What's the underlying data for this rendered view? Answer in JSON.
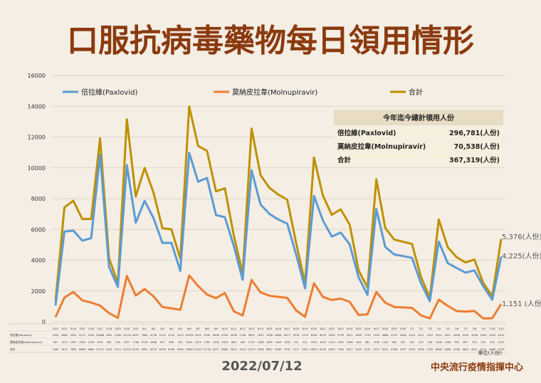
{
  "title": "口服抗病毒藥物每日領用情形",
  "date": "2022/07/12",
  "source": "中央流行疫情指揮中心",
  "unit_note": "單位(人份)",
  "colors": {
    "title": "#8b3a0f",
    "paxlovid": "#5b9bd5",
    "molnupiravir": "#ed7d31",
    "total": "#bf9000",
    "background": "#f4eee4",
    "box_header": "#e8dcc4",
    "box_body": "#f7efdd"
  },
  "summary": {
    "header": "今年迄今總計領用人份",
    "rows": [
      {
        "label": "倍拉維(Paxlovid)",
        "value": "296,781(人份)"
      },
      {
        "label": "莫納皮拉韋(Molnupiravir)",
        "value": "70,538(人份)"
      },
      {
        "label": "合計",
        "value": "367,319(人份)"
      }
    ]
  },
  "end_labels": {
    "total": "5,376(人份)",
    "paxlovid": "4,225(人份)",
    "molnupiravir": "1,151 (人份)"
  },
  "table_row_labels": [
    "倍拉維(Paxlovid)",
    "莫納皮拉韋(Molnupiravir)",
    "合計"
  ],
  "chart_data": {
    "type": "line",
    "ylim": [
      0,
      16000
    ],
    "yticks": [
      0,
      2000,
      4000,
      6000,
      8000,
      10000,
      12000,
      14000,
      16000
    ],
    "legend_position": "top",
    "grid": true,
    "categories": [
      "5/22",
      "5/23",
      "5/24",
      "5/25",
      "5/26",
      "5/27",
      "5/28",
      "5/29",
      "5/30",
      "5/31",
      "6/1",
      "6/2",
      "6/3",
      "6/4",
      "6/5",
      "6/6",
      "6/7",
      "6/8",
      "6/9",
      "6/10",
      "6/11",
      "6/12",
      "6/13",
      "6/14",
      "6/15",
      "6/16",
      "6/17",
      "6/18",
      "6/19",
      "6/20",
      "6/21",
      "6/22",
      "6/23",
      "6/24",
      "6/25",
      "6/26",
      "6/27",
      "6/28",
      "6/29",
      "6/30",
      "7/1",
      "7/2",
      "7/3",
      "7/4",
      "7/5",
      "7/6",
      "7/7",
      "7/8",
      "7/9",
      "7/10",
      "7/11"
    ],
    "series": [
      {
        "name": "倍拉維(Paxlovid)",
        "values": [
          1053,
          5860,
          5922,
          5272,
          5435,
          10866,
          3581,
          2260,
          10176,
          6437,
          7862,
          6728,
          5119,
          5130,
          3313,
          10978,
          9102,
          9335,
          6936,
          6794,
          4936,
          2728,
          9837,
          7620,
          7006,
          6644,
          6377,
          4376,
          2170,
          8169,
          6579,
          5540,
          5799,
          5021,
          2899,
          1750,
          7324,
          4860,
          4375,
          4266,
          4152,
          2511,
          1337,
          5210,
          3812,
          3498,
          3194,
          3338,
          2299,
          1433,
          4225
        ]
      },
      {
        "name": "莫納皮拉韋(Molnupiravir)",
        "values": [
          307,
          1571,
          1937,
          1394,
          1249,
          1051,
          562,
          252,
          2977,
          1708,
          2129,
          1646,
          957,
          876,
          781,
          3004,
          2325,
          1767,
          1535,
          1870,
          683,
          405,
          2720,
          1908,
          1691,
          1619,
          1554,
          741,
          321,
          2502,
          1613,
          1413,
          1501,
          1296,
          444,
          481,
          1933,
          1241,
          961,
          931,
          901,
          415,
          218,
          1436,
          1036,
          700,
          657,
          703,
          212,
          233,
          1151
        ]
      },
      {
        "name": "合計",
        "values": [
          1360,
          7431,
          7859,
          6666,
          6684,
          11917,
          4143,
          2512,
          13153,
          8145,
          9991,
          8374,
          6076,
          6006,
          4094,
          13982,
          11427,
          11102,
          8471,
          8664,
          5619,
          3133,
          12557,
          9528,
          8697,
          8263,
          7931,
          5117,
          2491,
          10671,
          8192,
          6953,
          7300,
          6317,
          3343,
          2231,
          9257,
          6101,
          5336,
          5197,
          5053,
          2926,
          1555,
          6646,
          4848,
          4198,
          3851,
          4041,
          2511,
          1666,
          5376
        ]
      }
    ]
  }
}
